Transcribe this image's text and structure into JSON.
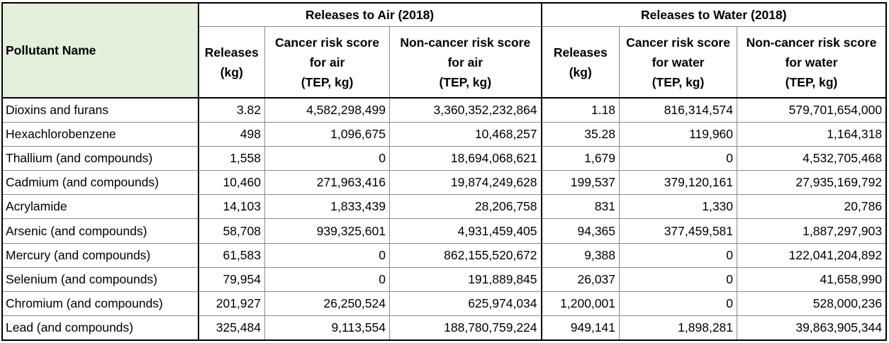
{
  "header": {
    "pollutant_name": "Pollutant Name",
    "air_group": "Releases to Air (2018)",
    "water_group": "Releases to Water (2018)",
    "air_cols": [
      [
        "Releases",
        "(kg)"
      ],
      [
        "Cancer risk score",
        "for air",
        "(TEP, kg)"
      ],
      [
        "Non-cancer risk score",
        "for air",
        "(TEP, kg)"
      ]
    ],
    "water_cols": [
      [
        "Releases",
        "(kg)"
      ],
      [
        "Cancer risk score",
        "for water",
        "(TEP, kg)"
      ],
      [
        "Non-cancer risk score",
        "for water",
        "(TEP, kg)"
      ]
    ]
  },
  "rows": [
    [
      "Dioxins and furans",
      "3.82",
      "4,582,298,499",
      "3,360,352,232,864",
      "1.18",
      "816,314,574",
      "579,701,654,000"
    ],
    [
      "Hexachlorobenzene",
      "498",
      "1,096,675",
      "10,468,257",
      "35.28",
      "119,960",
      "1,164,318"
    ],
    [
      "Thallium (and compounds)",
      "1,558",
      "0",
      "18,694,068,621",
      "1,679",
      "0",
      "4,532,705,468"
    ],
    [
      "Cadmium (and compounds)",
      "10,460",
      "271,963,416",
      "19,874,249,628",
      "199,537",
      "379,120,161",
      "27,935,169,792"
    ],
    [
      "Acrylamide",
      "14,103",
      "1,833,439",
      "28,206,758",
      "831",
      "1,330",
      "20,786"
    ],
    [
      "Arsenic (and compounds)",
      "58,708",
      "939,325,601",
      "4,931,459,405",
      "94,365",
      "377,459,581",
      "1,887,297,903"
    ],
    [
      "Mercury (and compounds)",
      "61,583",
      "0",
      "862,155,520,672",
      "9,388",
      "0",
      "122,041,204,892"
    ],
    [
      "Selenium (and compounds)",
      "79,954",
      "0",
      "191,889,845",
      "26,037",
      "0",
      "41,658,990"
    ],
    [
      "Chromium (and compounds)",
      "201,927",
      "26,250,524",
      "625,974,034",
      "1,200,001",
      "0",
      "528,000,236"
    ],
    [
      "Lead (and compounds)",
      "325,484",
      "9,113,554",
      "188,780,759,224",
      "949,141",
      "1,898,281",
      "39,863,905,344"
    ]
  ]
}
